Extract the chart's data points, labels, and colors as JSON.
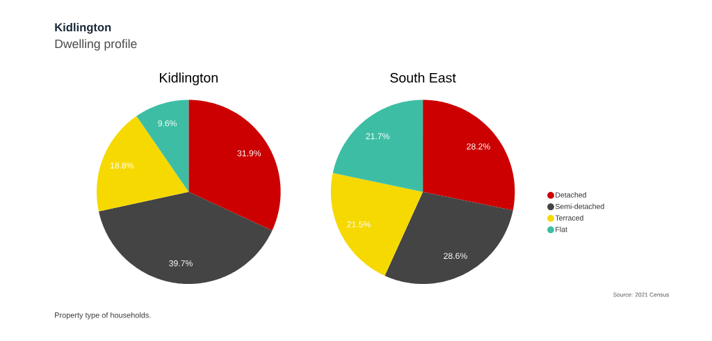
{
  "chart_data": [
    {
      "type": "pie",
      "title": "Kidlington",
      "categories": [
        null,
        null,
        null,
        null
      ],
      "values": [
        31.9,
        39.7,
        18.8,
        9.6
      ],
      "value_labels": [
        "31.9%",
        "39.7%",
        "18.8%",
        "9.6%"
      ],
      "colors": [
        "#cc0000",
        "#444444",
        "#f6d900",
        "#3dbea4"
      ],
      "annotations": [
        "Kidlington",
        "Dwelling profile",
        "Property type of households."
      ]
    },
    {
      "type": "pie",
      "title": "South East",
      "categories": [
        "Detached",
        "Semi-detached",
        "Terraced",
        "Flat"
      ],
      "values": [
        28.2,
        28.6,
        21.5,
        21.7
      ],
      "value_labels": [
        "28.2%",
        "28.6%",
        "21.5%",
        "21.7%"
      ],
      "colors": [
        "#cc0000",
        "#444444",
        "#f6d900",
        "#3dbea4"
      ],
      "legend": "right",
      "annotations": [
        "Source: 2021 Census"
      ]
    }
  ]
}
